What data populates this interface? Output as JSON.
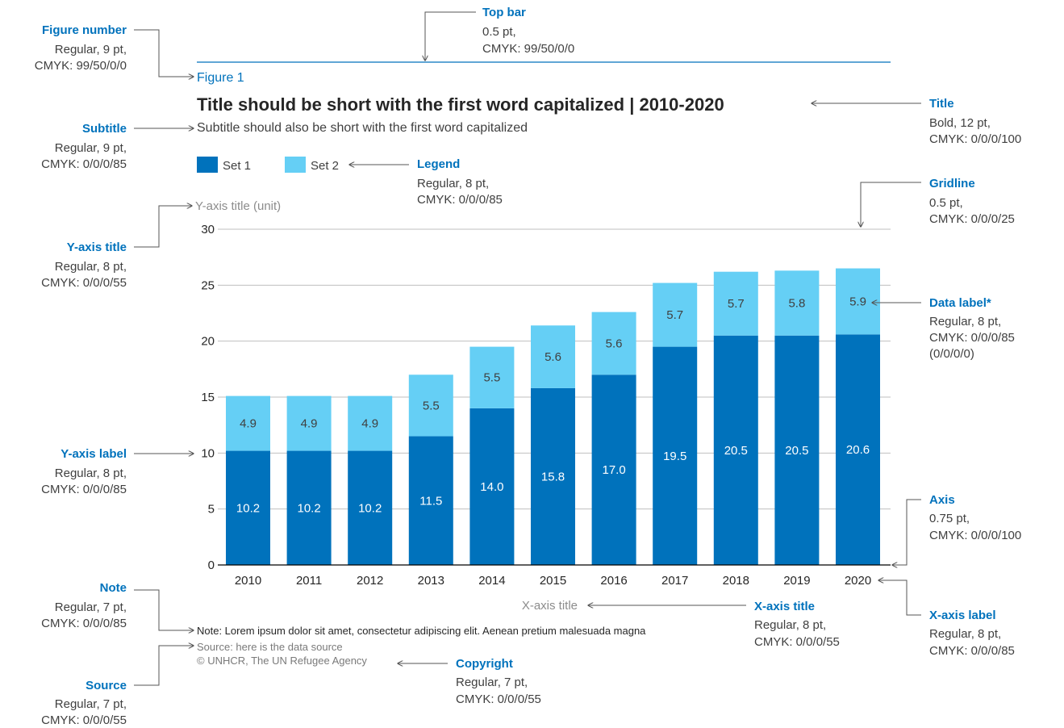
{
  "colors": {
    "set1": "#0072BC",
    "set2": "#65CFF5",
    "accent": "#0072BC",
    "gridline": "#bfbfbf",
    "axis": "#000000",
    "label_dark": "#404040",
    "label_light": "#ffffff"
  },
  "figure_number": "Figure 1",
  "chart_data": {
    "type": "bar",
    "stacked": true,
    "title": "Title should be short with the first word capitalized | 2010-2020",
    "subtitle": "Subtitle should also be short with the first word capitalized",
    "ylabel": "Y-axis title (unit)",
    "xlabel": "X-axis title",
    "categories": [
      "2010",
      "2011",
      "2012",
      "2013",
      "2014",
      "2015",
      "2016",
      "2017",
      "2018",
      "2019",
      "2020"
    ],
    "series": [
      {
        "name": "Set 1",
        "values": [
          10.2,
          10.2,
          10.2,
          11.5,
          14.0,
          15.8,
          17.0,
          19.5,
          20.5,
          20.5,
          20.6
        ]
      },
      {
        "name": "Set 2",
        "values": [
          4.9,
          4.9,
          4.9,
          5.5,
          5.5,
          5.6,
          5.6,
          5.7,
          5.7,
          5.8,
          5.9
        ]
      }
    ],
    "data_labels": {
      "set1": [
        "10.2",
        "10.2",
        "10.2",
        "11.5",
        "14.0",
        "15.8",
        "17.0",
        "19.5",
        "20.5",
        "20.5",
        "20.6"
      ],
      "set2": [
        "4.9",
        "4.9",
        "4.9",
        "5.5",
        "5.5",
        "5.6",
        "5.6",
        "5.7",
        "5.7",
        "5.8",
        "5.9"
      ]
    },
    "ylim": [
      0,
      30
    ],
    "yticks": [
      "0",
      "5",
      "10",
      "15",
      "20",
      "25",
      "30"
    ],
    "grid": true,
    "legend_position": "top-left"
  },
  "note": "Note: Lorem ipsum dolor sit amet, consectetur adipiscing elit. Aenean pretium malesuada magna",
  "source": "Source: here is the data source",
  "copyright": "© UNHCR, The UN Refugee Agency",
  "annotations": {
    "figure_number": {
      "title": "Figure number",
      "lines": [
        "Regular, 9 pt,",
        "CMYK: 99/50/0/0"
      ]
    },
    "top_bar": {
      "title": "Top bar",
      "lines": [
        "0.5 pt,",
        "CMYK: 99/50/0/0"
      ]
    },
    "title": {
      "title": "Title",
      "lines": [
        "Bold, 12 pt,",
        "CMYK: 0/0/0/100"
      ]
    },
    "subtitle": {
      "title": "Subtitle",
      "lines": [
        "Regular, 9 pt,",
        "CMYK: 0/0/0/85"
      ]
    },
    "legend": {
      "title": "Legend",
      "lines": [
        "Regular, 8 pt,",
        "CMYK: 0/0/0/85"
      ]
    },
    "gridline": {
      "title": "Gridline",
      "lines": [
        "0.5 pt,",
        "CMYK: 0/0/0/25"
      ]
    },
    "y_axis_title": {
      "title": "Y-axis title",
      "lines": [
        "Regular, 8 pt,",
        "CMYK: 0/0/0/55"
      ]
    },
    "data_label": {
      "title": "Data label*",
      "lines": [
        "Regular, 8 pt,",
        "CMYK: 0/0/0/85",
        "(0/0/0/0)"
      ]
    },
    "y_axis_label": {
      "title": "Y-axis label",
      "lines": [
        "Regular, 8 pt,",
        "CMYK: 0/0/0/85"
      ]
    },
    "axis": {
      "title": "Axis",
      "lines": [
        "0.75 pt,",
        "CMYK: 0/0/0/100"
      ]
    },
    "note": {
      "title": "Note",
      "lines": [
        "Regular, 7 pt,",
        "CMYK: 0/0/0/85"
      ]
    },
    "x_axis_title": {
      "title": "X-axis title",
      "lines": [
        "Regular, 8 pt,",
        "CMYK: 0/0/0/55"
      ]
    },
    "x_axis_label": {
      "title": "X-axis label",
      "lines": [
        "Regular, 8 pt,",
        "CMYK: 0/0/0/85"
      ]
    },
    "copyright": {
      "title": "Copyright",
      "lines": [
        "Regular, 7 pt,",
        "CMYK: 0/0/0/55"
      ]
    },
    "source": {
      "title": "Source",
      "lines": [
        "Regular, 7 pt,",
        "CMYK: 0/0/0/55"
      ]
    }
  }
}
